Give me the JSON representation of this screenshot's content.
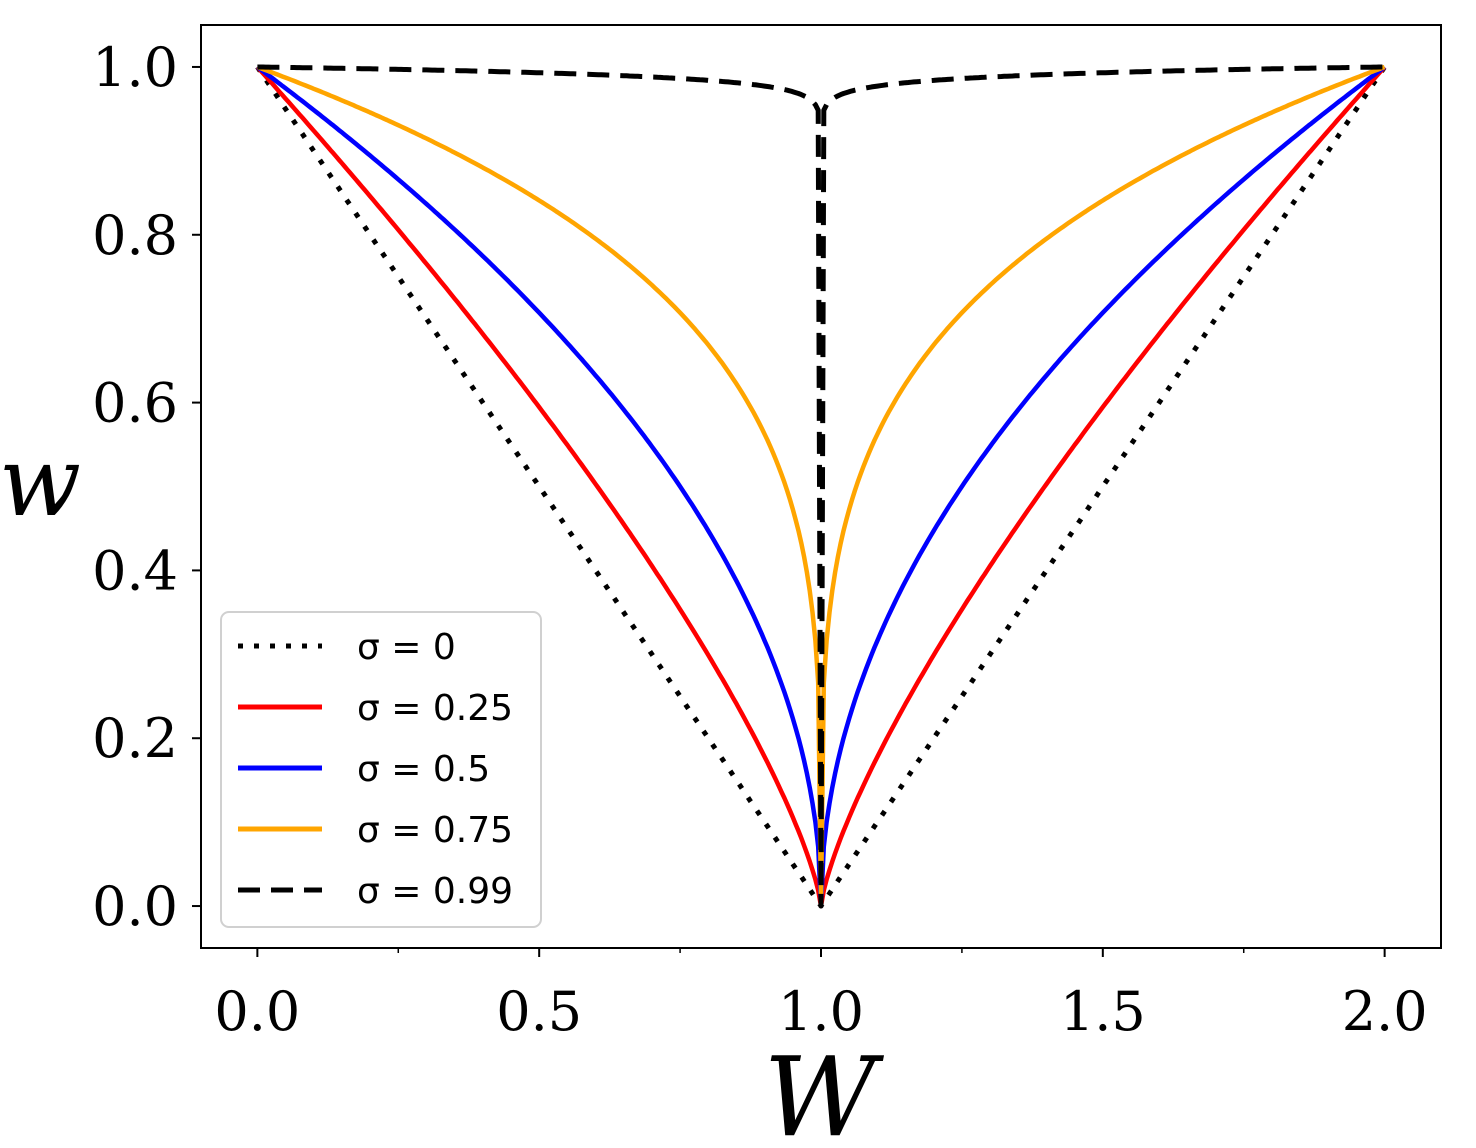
{
  "chart_data": {
    "type": "line",
    "title": "",
    "xlabel": "W",
    "ylabel": "w",
    "xlim": [
      -0.1,
      2.1
    ],
    "ylim": [
      -0.05,
      1.05
    ],
    "xticks": [
      "0.0",
      "0.5",
      "1.0",
      "1.5",
      "2.0"
    ],
    "xtick_values": [
      0.0,
      0.5,
      1.0,
      1.5,
      2.0
    ],
    "yticks": [
      "0.0",
      "0.2",
      "0.4",
      "0.6",
      "0.8",
      "1.0"
    ],
    "ytick_values": [
      0.0,
      0.2,
      0.4,
      0.6,
      0.8,
      1.0
    ],
    "legend_position": "lower-left",
    "series": [
      {
        "name": "σ = 0",
        "label": "σ = 0",
        "sigma": 0,
        "color": "#000000",
        "style": "dotted",
        "x": [
          0,
          0.25,
          0.5,
          0.75,
          1.0,
          1.25,
          1.5,
          1.75,
          2.0
        ],
        "y": [
          1.0,
          0.75,
          0.5,
          0.25,
          0.0,
          0.25,
          0.5,
          0.75,
          1.0
        ]
      },
      {
        "name": "σ = 0.25",
        "label": "σ = 0.25",
        "sigma": 0.25,
        "color": "#ff0000",
        "style": "solid",
        "x": [
          0,
          0.25,
          0.5,
          0.75,
          0.9,
          1.0,
          1.1,
          1.25,
          1.5,
          1.75,
          2.0
        ],
        "y": [
          1.0,
          0.8,
          0.59,
          0.35,
          0.18,
          0.0,
          0.18,
          0.35,
          0.59,
          0.8,
          1.0
        ]
      },
      {
        "name": "σ = 0.5",
        "label": "σ = 0.5",
        "sigma": 0.5,
        "color": "#0000ff",
        "style": "solid",
        "x": [
          0,
          0.25,
          0.5,
          0.75,
          0.9,
          1.0,
          1.1,
          1.25,
          1.5,
          1.75,
          2.0
        ],
        "y": [
          1.0,
          0.87,
          0.71,
          0.5,
          0.32,
          0.0,
          0.32,
          0.5,
          0.71,
          0.87,
          1.0
        ]
      },
      {
        "name": "σ = 0.75",
        "label": "σ = 0.75",
        "sigma": 0.75,
        "color": "#ffa500",
        "style": "solid",
        "x": [
          0,
          0.25,
          0.5,
          0.75,
          0.9,
          1.0,
          1.1,
          1.25,
          1.5,
          1.75,
          2.0
        ],
        "y": [
          1.0,
          0.93,
          0.84,
          0.71,
          0.56,
          0.0,
          0.56,
          0.71,
          0.84,
          0.93,
          1.0
        ]
      },
      {
        "name": "σ = 0.99",
        "label": "σ = 0.99",
        "sigma": 0.99,
        "color": "#000000",
        "style": "dashed",
        "x": [
          0,
          0.25,
          0.5,
          0.75,
          0.9,
          1.0,
          1.1,
          1.25,
          1.5,
          1.75,
          2.0
        ],
        "y": [
          1.0,
          0.995,
          0.99,
          0.98,
          0.97,
          0.0,
          0.97,
          0.98,
          0.99,
          0.995,
          1.0
        ]
      }
    ]
  }
}
